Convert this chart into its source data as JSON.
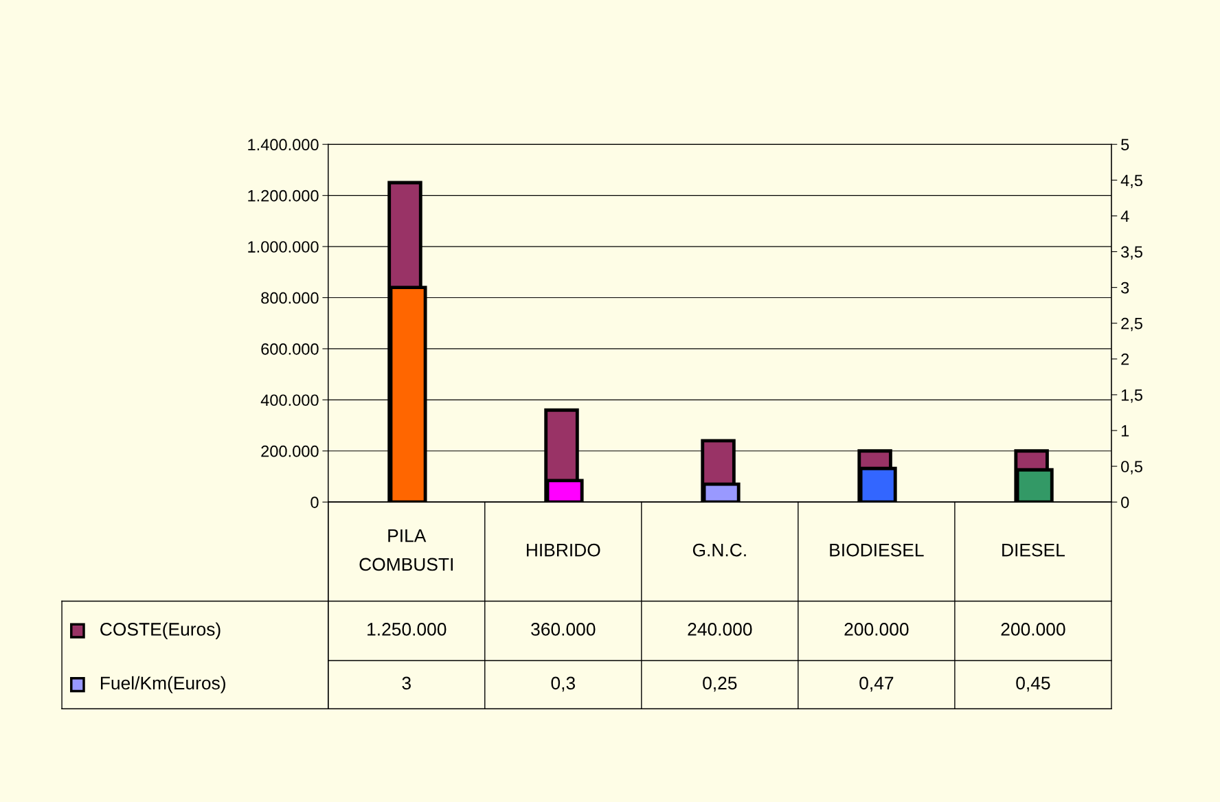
{
  "chart_data": {
    "type": "bar",
    "categories": [
      "PILA COMBUSTI",
      "HIBRIDO",
      "G.N.C.",
      "BIODIESEL",
      "DIESEL"
    ],
    "series": [
      {
        "name": "COSTE(Euros)",
        "color": "#993366",
        "values": [
          1250000,
          360000,
          240000,
          200000,
          200000
        ],
        "value_labels": [
          "1.250.000",
          "360.000",
          "240.000",
          "200.000",
          "200.000"
        ]
      },
      {
        "name": "Fuel/Km(Euros)",
        "color": "#9999ff",
        "colors": [
          "#ff6600",
          "#ff00ff",
          "#9999ff",
          "#3366ff",
          "#339966"
        ],
        "axis": "y2",
        "values": [
          3,
          0.3,
          0.25,
          0.47,
          0.45
        ],
        "value_labels": [
          "3",
          "0,3",
          "0,25",
          "0,47",
          "0,45"
        ]
      }
    ],
    "ylim": [
      0,
      1400000
    ],
    "yticks": [
      0,
      {
        "value": 200000,
        "label": "200.000"
      },
      {
        "value": 400000,
        "label": "400.000"
      },
      {
        "value": 600000,
        "label": "600.000"
      },
      {
        "value": 800000,
        "label": "800.000"
      },
      {
        "value": 1000000,
        "label": "1.000.000"
      },
      {
        "value": 1200000,
        "label": "1.200.000"
      },
      {
        "value": 1400000,
        "label": "1.400.000"
      }
    ],
    "y2lim": [
      0,
      5
    ],
    "y2ticks": [
      0,
      {
        "value": 0.5,
        "label": "0,5"
      },
      1,
      {
        "value": 1.5,
        "label": "1,5"
      },
      2,
      {
        "value": 2.5,
        "label": "2,5"
      },
      3,
      {
        "value": 3.5,
        "label": "3,5"
      },
      4,
      {
        "value": 4.5,
        "label": "4,5"
      },
      5
    ],
    "grid": "y",
    "legend": "bottom left"
  }
}
